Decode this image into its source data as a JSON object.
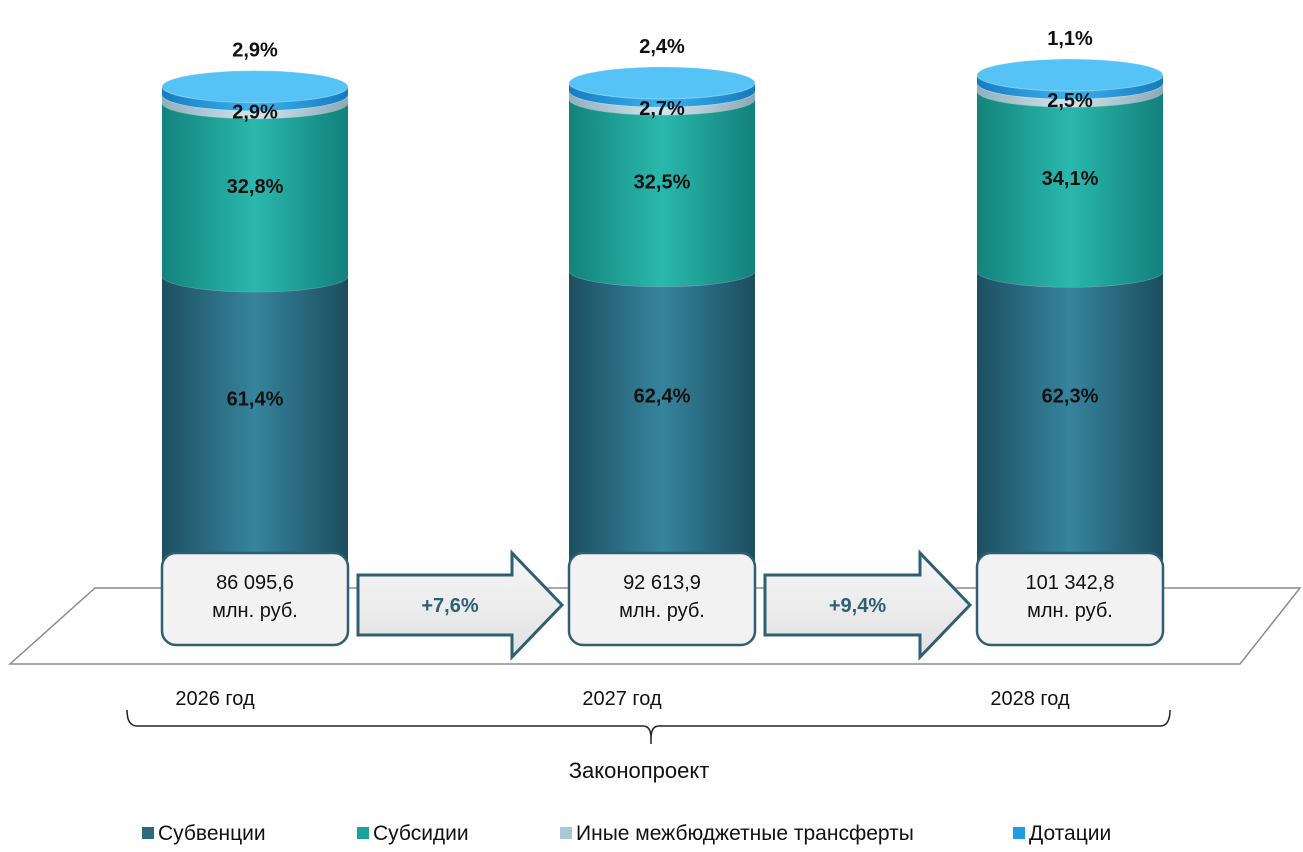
{
  "chart_data": {
    "type": "bar",
    "stacked": true,
    "categories": [
      "2026 год",
      "2027 год",
      "2028 год"
    ],
    "series": [
      {
        "name": "Субвенции",
        "values": [
          61.4,
          62.4,
          62.3
        ],
        "labels": [
          "61,4%",
          "62,4%",
          "62,3%"
        ],
        "color": "#2b6a80"
      },
      {
        "name": "Субсидии",
        "values": [
          32.8,
          32.5,
          34.1
        ],
        "labels": [
          "32,8%",
          "32,5%",
          "34,1%"
        ],
        "color": "#1aa39a"
      },
      {
        "name": "Иные межбюджетные трансферты",
        "values": [
          2.9,
          2.7,
          2.5
        ],
        "labels": [
          "2,9%",
          "2,7%",
          "2,5%"
        ],
        "color": "#aac8d3"
      },
      {
        "name": "Дотации",
        "values": [
          2.9,
          2.4,
          1.1
        ],
        "labels": [
          "2,9%",
          "2,4%",
          "1,1%"
        ],
        "color": "#1f9de0"
      }
    ],
    "totals": [
      {
        "value": "86 095,6",
        "unit": "млн. руб."
      },
      {
        "value": "92 613,9",
        "unit": "млн. руб."
      },
      {
        "value": "101 342,8",
        "unit": "млн. руб."
      }
    ],
    "growth": [
      "+7,6%",
      "+9,4%"
    ],
    "bracket_label": "Законопроект",
    "legend_position": "bottom"
  }
}
